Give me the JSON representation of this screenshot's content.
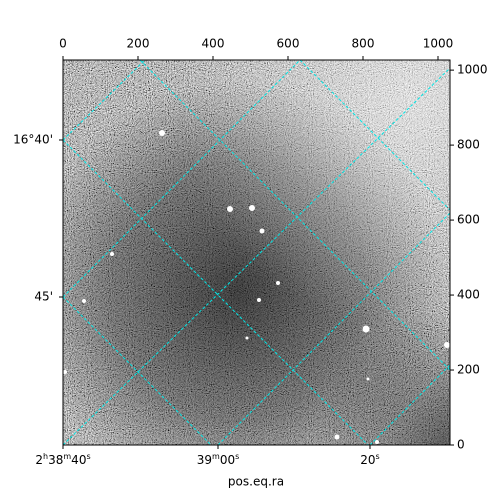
{
  "chart_data": {
    "type": "image",
    "xlabel": "pos.eq.ra",
    "xlim": [
      0,
      1032
    ],
    "ylim": [
      0,
      1027
    ],
    "xticks": [
      0,
      200,
      400,
      600,
      800,
      1000
    ],
    "yticks": [
      0,
      200,
      400,
      600,
      800,
      1000
    ],
    "ra_ticks": [
      "2h38m40s",
      "39m00s",
      "20s"
    ],
    "dec_ticks": [
      "16°40'",
      "45'"
    ],
    "grid_color": "#00e5e5"
  }
}
